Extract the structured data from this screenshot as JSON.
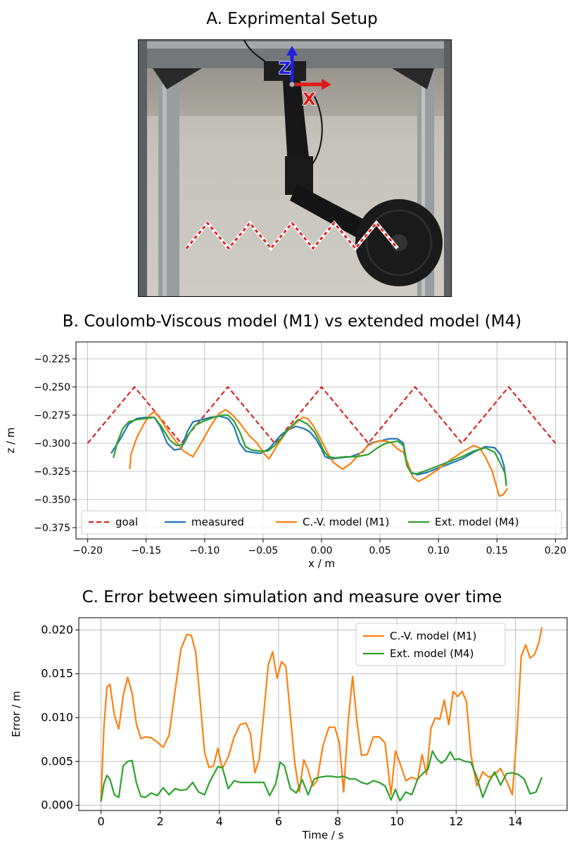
{
  "panels": {
    "a_title": "A. Exprimental Setup",
    "b_title": "B. Coulomb-Viscous model (M1) vs extended model (M4)",
    "c_title": "C. Error between simulation and measure over time"
  },
  "photo": {
    "axis_z_label": "Z",
    "axis_x_label": "X",
    "colors": {
      "frame": "#8a8d8f",
      "wall": "#d4d2cb",
      "arm": "#151515",
      "goal_red": "#d62728",
      "axis_blue": "#1f1fe0",
      "axis_red": "#e01818"
    }
  },
  "chart_data": [
    {
      "type": "line",
      "title": "B. Coulomb-Viscous model (M1) vs extended model (M4)",
      "xlabel": "x / m",
      "ylabel": "z / m",
      "xlim": [
        -0.21,
        0.21
      ],
      "ylim": [
        -0.385,
        -0.21
      ],
      "xticks": [
        -0.2,
        -0.15,
        -0.1,
        -0.05,
        0.0,
        0.05,
        0.1,
        0.15,
        0.2
      ],
      "xtick_labels": [
        "−0.20",
        "−0.15",
        "−0.10",
        "−0.05",
        "0.00",
        "0.05",
        "0.10",
        "0.15",
        "0.20"
      ],
      "yticks": [
        -0.225,
        -0.25,
        -0.275,
        -0.3,
        -0.325,
        -0.35,
        -0.375
      ],
      "ytick_labels": [
        "−0.225",
        "−0.250",
        "−0.275",
        "−0.300",
        "−0.325",
        "−0.350",
        "−0.375"
      ],
      "grid": true,
      "legend": "bottom",
      "series": [
        {
          "name": "goal",
          "color": "#d62728",
          "dash": true,
          "x": [
            -0.2,
            -0.16,
            -0.12,
            -0.08,
            -0.04,
            0.0,
            0.04,
            0.08,
            0.12,
            0.16,
            0.2
          ],
          "y": [
            -0.3,
            -0.25,
            -0.3,
            -0.25,
            -0.3,
            -0.25,
            -0.3,
            -0.25,
            -0.3,
            -0.25,
            -0.3
          ]
        },
        {
          "name": "measured",
          "color": "#1f77b4",
          "x": [
            -0.18,
            -0.172,
            -0.165,
            -0.158,
            -0.15,
            -0.143,
            -0.138,
            -0.132,
            -0.126,
            -0.12,
            -0.115,
            -0.11,
            -0.102,
            -0.095,
            -0.087,
            -0.08,
            -0.075,
            -0.07,
            -0.065,
            -0.06,
            -0.052,
            -0.045,
            -0.04,
            -0.035,
            -0.03,
            -0.022,
            -0.015,
            -0.01,
            -0.005,
            0.0,
            0.003,
            0.008,
            0.015,
            0.025,
            0.035,
            0.04,
            0.045,
            0.05,
            0.058,
            0.065,
            0.07,
            0.073,
            0.077,
            0.082,
            0.09,
            0.1,
            0.11,
            0.12,
            0.13,
            0.14,
            0.148,
            0.153,
            0.156,
            0.158
          ],
          "y": [
            -0.309,
            -0.296,
            -0.283,
            -0.278,
            -0.277,
            -0.277,
            -0.285,
            -0.3,
            -0.306,
            -0.305,
            -0.29,
            -0.281,
            -0.279,
            -0.277,
            -0.276,
            -0.278,
            -0.285,
            -0.3,
            -0.307,
            -0.308,
            -0.309,
            -0.305,
            -0.299,
            -0.293,
            -0.289,
            -0.285,
            -0.287,
            -0.29,
            -0.296,
            -0.305,
            -0.312,
            -0.314,
            -0.313,
            -0.312,
            -0.308,
            -0.301,
            -0.299,
            -0.298,
            -0.296,
            -0.296,
            -0.3,
            -0.318,
            -0.326,
            -0.328,
            -0.326,
            -0.322,
            -0.318,
            -0.314,
            -0.308,
            -0.303,
            -0.304,
            -0.31,
            -0.32,
            -0.336
          ]
        },
        {
          "name": "C.-V. model (M1)",
          "color": "#ff7f0e",
          "x": [
            -0.164,
            -0.163,
            -0.158,
            -0.152,
            -0.147,
            -0.143,
            -0.138,
            -0.132,
            -0.125,
            -0.118,
            -0.11,
            -0.102,
            -0.095,
            -0.088,
            -0.082,
            -0.076,
            -0.07,
            -0.062,
            -0.055,
            -0.05,
            -0.045,
            -0.038,
            -0.03,
            -0.022,
            -0.016,
            -0.012,
            -0.008,
            -0.004,
            0.0,
            0.005,
            0.01,
            0.018,
            0.025,
            0.032,
            0.04,
            0.048,
            0.055,
            0.06,
            0.065,
            0.07,
            0.074,
            0.078,
            0.083,
            0.09,
            0.1,
            0.11,
            0.12,
            0.13,
            0.135,
            0.14,
            0.146,
            0.15,
            0.152,
            0.155,
            0.158,
            0.159
          ],
          "y": [
            -0.323,
            -0.31,
            -0.295,
            -0.283,
            -0.275,
            -0.272,
            -0.278,
            -0.288,
            -0.298,
            -0.307,
            -0.312,
            -0.298,
            -0.285,
            -0.274,
            -0.27,
            -0.275,
            -0.282,
            -0.293,
            -0.3,
            -0.308,
            -0.314,
            -0.302,
            -0.29,
            -0.282,
            -0.277,
            -0.278,
            -0.283,
            -0.29,
            -0.298,
            -0.308,
            -0.317,
            -0.323,
            -0.318,
            -0.31,
            -0.302,
            -0.298,
            -0.298,
            -0.3,
            -0.305,
            -0.308,
            -0.318,
            -0.33,
            -0.334,
            -0.33,
            -0.323,
            -0.315,
            -0.308,
            -0.302,
            -0.304,
            -0.312,
            -0.325,
            -0.34,
            -0.347,
            -0.346,
            -0.342,
            -0.34
          ]
        },
        {
          "name": "Ext. model (M4)",
          "color": "#2ca02c",
          "x": [
            -0.178,
            -0.175,
            -0.17,
            -0.165,
            -0.158,
            -0.15,
            -0.143,
            -0.137,
            -0.13,
            -0.124,
            -0.118,
            -0.113,
            -0.108,
            -0.1,
            -0.092,
            -0.085,
            -0.08,
            -0.075,
            -0.07,
            -0.065,
            -0.06,
            -0.052,
            -0.046,
            -0.04,
            -0.034,
            -0.028,
            -0.02,
            -0.012,
            -0.006,
            -0.002,
            0.002,
            0.006,
            0.012,
            0.02,
            0.03,
            0.04,
            0.048,
            0.055,
            0.06,
            0.065,
            0.07,
            0.073,
            0.077,
            0.082,
            0.09,
            0.1,
            0.11,
            0.12,
            0.13,
            0.14,
            0.148,
            0.153,
            0.157,
            0.158
          ],
          "y": [
            -0.313,
            -0.3,
            -0.287,
            -0.281,
            -0.279,
            -0.278,
            -0.277,
            -0.285,
            -0.297,
            -0.302,
            -0.301,
            -0.291,
            -0.284,
            -0.28,
            -0.277,
            -0.275,
            -0.275,
            -0.28,
            -0.29,
            -0.303,
            -0.306,
            -0.307,
            -0.307,
            -0.302,
            -0.295,
            -0.287,
            -0.279,
            -0.283,
            -0.29,
            -0.298,
            -0.307,
            -0.312,
            -0.313,
            -0.312,
            -0.312,
            -0.31,
            -0.304,
            -0.3,
            -0.299,
            -0.298,
            -0.302,
            -0.32,
            -0.327,
            -0.327,
            -0.324,
            -0.32,
            -0.316,
            -0.312,
            -0.307,
            -0.304,
            -0.308,
            -0.318,
            -0.327,
            -0.338
          ]
        }
      ]
    },
    {
      "type": "line",
      "title": "C. Error between simulation and measure over time",
      "xlabel": "Time / s",
      "ylabel": "Error / m",
      "xlim": [
        -0.75,
        15.75
      ],
      "ylim": [
        -0.0006,
        0.0214
      ],
      "xticks": [
        0,
        2,
        4,
        6,
        8,
        10,
        12,
        14
      ],
      "xtick_labels": [
        "0",
        "2",
        "4",
        "6",
        "8",
        "10",
        "12",
        "14"
      ],
      "yticks": [
        0.0,
        0.005,
        0.01,
        0.015,
        0.02
      ],
      "ytick_labels": [
        "0.000",
        "0.005",
        "0.010",
        "0.015",
        "0.020"
      ],
      "grid": true,
      "legend": "top-right",
      "series": [
        {
          "name": "C.-V. model (M1)",
          "color": "#ff7f0e",
          "x": [
            0.0,
            0.1,
            0.2,
            0.3,
            0.45,
            0.6,
            0.75,
            0.9,
            1.05,
            1.2,
            1.35,
            1.5,
            1.7,
            1.9,
            2.1,
            2.3,
            2.5,
            2.7,
            2.9,
            3.05,
            3.2,
            3.35,
            3.5,
            3.65,
            3.8,
            3.95,
            4.1,
            4.3,
            4.5,
            4.7,
            4.9,
            5.05,
            5.2,
            5.35,
            5.5,
            5.65,
            5.8,
            5.95,
            6.1,
            6.25,
            6.4,
            6.55,
            6.7,
            6.85,
            7.0,
            7.15,
            7.3,
            7.5,
            7.7,
            7.9,
            8.05,
            8.2,
            8.35,
            8.5,
            8.65,
            8.8,
            9.0,
            9.2,
            9.4,
            9.6,
            9.8,
            9.95,
            10.1,
            10.3,
            10.5,
            10.7,
            10.85,
            11.0,
            11.15,
            11.3,
            11.45,
            11.6,
            11.75,
            11.9,
            12.05,
            12.2,
            12.35,
            12.5,
            12.7,
            12.9,
            13.1,
            13.3,
            13.5,
            13.7,
            13.9,
            14.05,
            14.2,
            14.35,
            14.5,
            14.65,
            14.8,
            14.9
          ],
          "y": [
            0.0005,
            0.009,
            0.0135,
            0.0138,
            0.0103,
            0.0087,
            0.0125,
            0.0146,
            0.0128,
            0.0092,
            0.0076,
            0.0078,
            0.0077,
            0.0072,
            0.0066,
            0.008,
            0.013,
            0.0178,
            0.0195,
            0.0194,
            0.0175,
            0.012,
            0.006,
            0.0043,
            0.0045,
            0.0065,
            0.0042,
            0.0055,
            0.0078,
            0.0092,
            0.0094,
            0.0082,
            0.0037,
            0.0053,
            0.0105,
            0.016,
            0.0175,
            0.0145,
            0.0164,
            0.0158,
            0.0102,
            0.0048,
            0.0015,
            0.0052,
            0.004,
            0.0022,
            0.0028,
            0.0068,
            0.0089,
            0.0089,
            0.0072,
            0.0015,
            0.0095,
            0.0147,
            0.0095,
            0.0057,
            0.0058,
            0.0078,
            0.0078,
            0.0071,
            0.0012,
            0.0062,
            0.0048,
            0.0028,
            0.0032,
            0.0029,
            0.0058,
            0.0035,
            0.0088,
            0.01,
            0.0098,
            0.012,
            0.0092,
            0.013,
            0.0124,
            0.013,
            0.0118,
            0.0058,
            0.0022,
            0.0038,
            0.0032,
            0.0035,
            0.0042,
            0.0028,
            0.0012,
            0.008,
            0.017,
            0.0183,
            0.0168,
            0.0172,
            0.0186,
            0.0203
          ]
        },
        {
          "name": "Ext. model (M4)",
          "color": "#2ca02c",
          "x": [
            0.0,
            0.1,
            0.2,
            0.3,
            0.45,
            0.6,
            0.75,
            0.9,
            1.05,
            1.2,
            1.35,
            1.5,
            1.7,
            1.9,
            2.1,
            2.3,
            2.5,
            2.7,
            2.9,
            3.1,
            3.3,
            3.5,
            3.65,
            3.8,
            3.95,
            4.1,
            4.3,
            4.5,
            4.7,
            4.9,
            5.1,
            5.3,
            5.5,
            5.7,
            5.9,
            6.05,
            6.2,
            6.4,
            6.6,
            6.8,
            7.0,
            7.2,
            7.4,
            7.6,
            7.8,
            8.0,
            8.2,
            8.4,
            8.6,
            8.8,
            9.0,
            9.2,
            9.4,
            9.6,
            9.8,
            9.95,
            10.1,
            10.3,
            10.5,
            10.7,
            10.9,
            11.05,
            11.2,
            11.35,
            11.5,
            11.65,
            11.8,
            11.95,
            12.1,
            12.3,
            12.5,
            12.7,
            12.9,
            13.1,
            13.3,
            13.5,
            13.7,
            13.9,
            14.1,
            14.3,
            14.5,
            14.7,
            14.9
          ],
          "y": [
            0.0004,
            0.0025,
            0.0034,
            0.003,
            0.0012,
            0.0009,
            0.0045,
            0.005,
            0.0051,
            0.0025,
            0.001,
            0.0009,
            0.0014,
            0.0011,
            0.002,
            0.0012,
            0.0019,
            0.0017,
            0.0018,
            0.0026,
            0.0015,
            0.0012,
            0.0025,
            0.0035,
            0.0044,
            0.0043,
            0.0019,
            0.0028,
            0.0026,
            0.0026,
            0.0026,
            0.0026,
            0.0026,
            0.0011,
            0.0024,
            0.0049,
            0.0045,
            0.0019,
            0.0014,
            0.0029,
            0.0012,
            0.003,
            0.0032,
            0.0033,
            0.0033,
            0.0032,
            0.0033,
            0.003,
            0.003,
            0.0026,
            0.0024,
            0.0028,
            0.0026,
            0.0022,
            0.0006,
            0.0018,
            0.0005,
            0.0015,
            0.0012,
            0.003,
            0.0037,
            0.0041,
            0.0062,
            0.0053,
            0.0048,
            0.0052,
            0.0061,
            0.0052,
            0.0053,
            0.005,
            0.0049,
            0.0032,
            0.0009,
            0.0026,
            0.0038,
            0.0023,
            0.0036,
            0.0037,
            0.0035,
            0.003,
            0.0013,
            0.0015,
            0.0032
          ]
        }
      ]
    }
  ]
}
